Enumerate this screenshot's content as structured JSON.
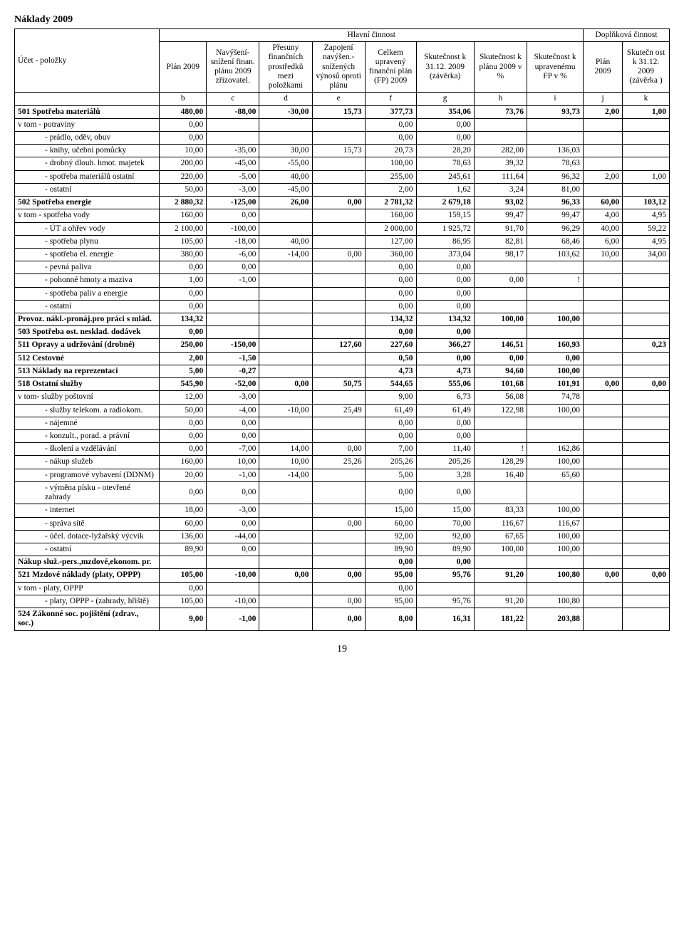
{
  "page_title": "Náklady 2009",
  "header_group_main": "Hlavní činnost",
  "header_group_supp": "Doplňková činnost",
  "col_headers": {
    "a": "Účet - položky",
    "b": "Plán 2009",
    "c": "Navýšení- snížení finan. plánu 2009 zřizovatel.",
    "d": "Přesuny finančních prostředků mezi položkami",
    "e": "Zapojení navýšen.- snížených výnosů oproti plánu",
    "f": "Celkem upravený finanční plán (FP) 2009",
    "g": "Skutečnost k 31.12. 2009 (závěrka)",
    "h": "Skutečnost k plánu 2009 v %",
    "i": "Skutečnost k upravenému FP v %",
    "j": "Plán 2009",
    "k": "Skutečn ost k 31.12. 2009 (závěrka )"
  },
  "letters": [
    "b",
    "c",
    "d",
    "e",
    "f",
    "g",
    "h",
    "i",
    "j",
    "k"
  ],
  "rows": [
    {
      "label": "501 Spotřeba materiálů",
      "bold": true,
      "ind": 0,
      "v": [
        "480,00",
        "-88,00",
        "-30,00",
        "15,73",
        "377,73",
        "354,06",
        "73,76",
        "93,73",
        "2,00",
        "1,00"
      ]
    },
    {
      "label": "v tom  - potraviny",
      "ind": 0,
      "v": [
        "0,00",
        "",
        "",
        "",
        "0,00",
        "0,00",
        "",
        "",
        "",
        ""
      ]
    },
    {
      "label": "- prádlo, oděv, obuv",
      "ind": 3,
      "v": [
        "0,00",
        "",
        "",
        "",
        "0,00",
        "0,00",
        "",
        "",
        "",
        ""
      ]
    },
    {
      "label": "- knihy, učební pomůcky",
      "ind": 3,
      "v": [
        "10,00",
        "-35,00",
        "30,00",
        "15,73",
        "20,73",
        "28,20",
        "282,00",
        "136,03",
        "",
        ""
      ]
    },
    {
      "label": "- drobný dlouh. hmot. majetek",
      "ind": 3,
      "v": [
        "200,00",
        "-45,00",
        "-55,00",
        "",
        "100,00",
        "78,63",
        "39,32",
        "78,63",
        "",
        ""
      ]
    },
    {
      "label": "- spotřeba materiálů ostatní",
      "ind": 3,
      "v": [
        "220,00",
        "-5,00",
        "40,00",
        "",
        "255,00",
        "245,61",
        "111,64",
        "96,32",
        "2,00",
        "1,00"
      ]
    },
    {
      "label": "- ostatní",
      "ind": 3,
      "v": [
        "50,00",
        "-3,00",
        "-45,00",
        "",
        "2,00",
        "1,62",
        "3,24",
        "81,00",
        "",
        ""
      ]
    },
    {
      "label": "502 Spotřeba energie",
      "bold": true,
      "ind": 0,
      "v": [
        "2 880,32",
        "-125,00",
        "26,00",
        "0,00",
        "2 781,32",
        "2 679,18",
        "93,02",
        "96,33",
        "60,00",
        "103,12"
      ]
    },
    {
      "label": "v tom  - spotřeba vody",
      "ind": 0,
      "v": [
        "160,00",
        "0,00",
        "",
        "",
        "160,00",
        "159,15",
        "99,47",
        "99,47",
        "4,00",
        "4,95"
      ]
    },
    {
      "label": "- ÚT a ohřev vody",
      "ind": 3,
      "v": [
        "2 100,00",
        "-100,00",
        "",
        "",
        "2 000,00",
        "1 925,72",
        "91,70",
        "96,29",
        "40,00",
        "59,22"
      ]
    },
    {
      "label": "- spotřeba plynu",
      "ind": 3,
      "v": [
        "105,00",
        "-18,00",
        "40,00",
        "",
        "127,00",
        "86,95",
        "82,81",
        "68,46",
        "6,00",
        "4,95"
      ]
    },
    {
      "label": "- spotřeba el. energie",
      "ind": 3,
      "v": [
        "380,00",
        "-6,00",
        "-14,00",
        "0,00",
        "360,00",
        "373,04",
        "98,17",
        "103,62",
        "10,00",
        "34,00"
      ]
    },
    {
      "label": "- pevná paliva",
      "ind": 3,
      "v": [
        "0,00",
        "0,00",
        "",
        "",
        "0,00",
        "0,00",
        "",
        "",
        "",
        ""
      ]
    },
    {
      "label": "- pohonné hmoty a maziva",
      "ind": 3,
      "v": [
        "1,00",
        "-1,00",
        "",
        "",
        "0,00",
        "0,00",
        "0,00",
        "!",
        "",
        ""
      ]
    },
    {
      "label": "- spotřeba paliv a energie",
      "ind": 3,
      "v": [
        "0,00",
        "",
        "",
        "",
        "0,00",
        "0,00",
        "",
        "",
        "",
        ""
      ]
    },
    {
      "label": "- ostatní",
      "ind": 3,
      "v": [
        "0,00",
        "",
        "",
        "",
        "0,00",
        "0,00",
        "",
        "",
        "",
        ""
      ]
    },
    {
      "label": "Provoz. nákl.-pronáj.pro práci s mlád.",
      "bold": true,
      "ind": 0,
      "v": [
        "134,32",
        "",
        "",
        "",
        "134,32",
        "134,32",
        "100,00",
        "100,00",
        "",
        ""
      ]
    },
    {
      "label": "503 Spotřeba ost. nesklad. dodávek",
      "bold": true,
      "ind": 0,
      "v": [
        "0,00",
        "",
        "",
        "",
        "0,00",
        "0,00",
        "",
        "",
        "",
        ""
      ]
    },
    {
      "label": "511 Opravy a udržování (drobné)",
      "bold": true,
      "ind": 0,
      "v": [
        "250,00",
        "-150,00",
        "",
        "127,60",
        "227,60",
        "366,27",
        "146,51",
        "160,93",
        "",
        "0,23"
      ]
    },
    {
      "label": "512 Cestovné",
      "bold": true,
      "ind": 0,
      "v": [
        "2,00",
        "-1,50",
        "",
        "",
        "0,50",
        "0,00",
        "0,00",
        "0,00",
        "",
        ""
      ]
    },
    {
      "label": "513 Náklady na reprezentaci",
      "bold": true,
      "ind": 0,
      "v": [
        "5,00",
        "-0,27",
        "",
        "",
        "4,73",
        "4,73",
        "94,60",
        "100,00",
        "",
        ""
      ]
    },
    {
      "label": "518 Ostatní služby",
      "bold": true,
      "ind": 0,
      "v": [
        "545,90",
        "-52,00",
        "0,00",
        "50,75",
        "544,65",
        "555,06",
        "101,68",
        "101,91",
        "0,00",
        "0,00"
      ]
    },
    {
      "label": "v tom- služby poštovní",
      "ind": 0,
      "v": [
        "12,00",
        "-3,00",
        "",
        "",
        "9,00",
        "6,73",
        "56,08",
        "74,78",
        "",
        ""
      ]
    },
    {
      "label": "- služby telekom. a radiokom.",
      "ind": 3,
      "v": [
        "50,00",
        "-4,00",
        "-10,00",
        "25,49",
        "61,49",
        "61,49",
        "122,98",
        "100,00",
        "",
        ""
      ]
    },
    {
      "label": "- nájemné",
      "ind": 3,
      "v": [
        "0,00",
        "0,00",
        "",
        "",
        "0,00",
        "0,00",
        "",
        "",
        "",
        ""
      ]
    },
    {
      "label": "- konzult., porad. a právní",
      "ind": 3,
      "v": [
        "0,00",
        "0,00",
        "",
        "",
        "0,00",
        "0,00",
        "",
        "",
        "",
        ""
      ]
    },
    {
      "label": "- školení a vzdělávání",
      "ind": 3,
      "v": [
        "0,00",
        "-7,00",
        "14,00",
        "0,00",
        "7,00",
        "11,40",
        "!",
        "162,86",
        "",
        ""
      ]
    },
    {
      "label": "- nákup služeb",
      "ind": 3,
      "v": [
        "160,00",
        "10,00",
        "10,00",
        "25,26",
        "205,26",
        "205,26",
        "128,29",
        "100,00",
        "",
        ""
      ]
    },
    {
      "label": "- programové vybavení (DDNM)",
      "ind": 3,
      "v": [
        "20,00",
        "-1,00",
        "-14,00",
        "",
        "5,00",
        "3,28",
        "16,40",
        "65,60",
        "",
        ""
      ]
    },
    {
      "label": "- výměna písku - otevřené zahrady",
      "ind": 3,
      "v": [
        "0,00",
        "0,00",
        "",
        "",
        "0,00",
        "0,00",
        "",
        "",
        "",
        ""
      ]
    },
    {
      "label": "- internet",
      "ind": 3,
      "v": [
        "18,00",
        "-3,00",
        "",
        "",
        "15,00",
        "15,00",
        "83,33",
        "100,00",
        "",
        ""
      ]
    },
    {
      "label": "- správa sítě",
      "ind": 3,
      "v": [
        "60,00",
        "0,00",
        "",
        "0,00",
        "60,00",
        "70,00",
        "116,67",
        "116,67",
        "",
        ""
      ]
    },
    {
      "label": "- účel. dotace-lyžařský výcvik",
      "ind": 3,
      "v": [
        "136,00",
        "-44,00",
        "",
        "",
        "92,00",
        "92,00",
        "67,65",
        "100,00",
        "",
        ""
      ]
    },
    {
      "label": "- ostatní",
      "ind": 3,
      "v": [
        "89,90",
        "0,00",
        "",
        "",
        "89,90",
        "89,90",
        "100,00",
        "100,00",
        "",
        ""
      ]
    },
    {
      "label": "Nákup služ.-pers.,mzdové,ekonom. pr.",
      "bold": true,
      "ind": 0,
      "v": [
        "",
        "",
        "",
        "",
        "0,00",
        "0,00",
        "",
        "",
        "",
        ""
      ]
    },
    {
      "label": "521 Mzdové náklady (platy, OPPP)",
      "bold": true,
      "ind": 0,
      "v": [
        "105,00",
        "-10,00",
        "0,00",
        "0,00",
        "95,00",
        "95,76",
        "91,20",
        "100,80",
        "0,00",
        "0,00"
      ]
    },
    {
      "label": "v tom  - platy, OPPP",
      "ind": 0,
      "v": [
        "0,00",
        "",
        "",
        "",
        "0,00",
        "",
        "",
        "",
        "",
        ""
      ]
    },
    {
      "label": "- platy, OPPP - (zahrady, hřiště)",
      "ind": 3,
      "v": [
        "105,00",
        "-10,00",
        "",
        "0,00",
        "95,00",
        "95,76",
        "91,20",
        "100,80",
        "",
        ""
      ]
    },
    {
      "label": "524 Zákonné soc. pojištění (zdrav., soc.)",
      "bold": true,
      "ind": 0,
      "v": [
        "9,00",
        "-1,00",
        "",
        "0,00",
        "8,00",
        "16,31",
        "181,22",
        "203,88",
        "",
        ""
      ]
    }
  ],
  "page_number": "19"
}
